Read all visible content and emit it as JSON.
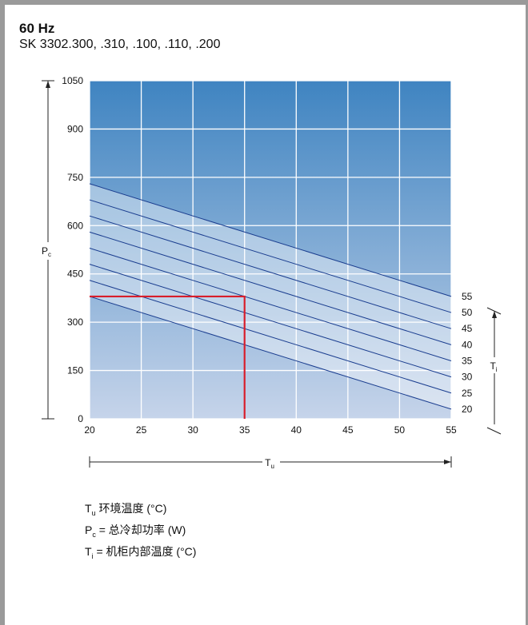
{
  "header": {
    "title": "60 Hz",
    "subtitle": "SK 3302.300, .310, .100, .110, .200"
  },
  "colors": {
    "bg_top": "#3f84c1",
    "bg_bottom": "#c6d4ea",
    "band_fill": "#ffffff",
    "line": "#1a3d8f",
    "highlight": "#d81e2b",
    "grid": "#ffffff"
  },
  "chart_data": {
    "type": "line",
    "xlabel": "T",
    "xlabel_sub": "u",
    "ylabel": "P",
    "ylabel_sub": "c",
    "right_label": "T",
    "right_label_sub": "i",
    "xlim": [
      20,
      55
    ],
    "ylim": [
      0,
      1050
    ],
    "xticks": [
      20,
      25,
      30,
      35,
      40,
      45,
      50,
      55
    ],
    "yticks": [
      0,
      150,
      300,
      450,
      600,
      750,
      900,
      1050
    ],
    "grid": true,
    "series": [
      {
        "name": "55",
        "x": [
          20,
          55
        ],
        "y": [
          730,
          380
        ]
      },
      {
        "name": "50",
        "x": [
          20,
          55
        ],
        "y": [
          680,
          330
        ]
      },
      {
        "name": "45",
        "x": [
          20,
          55
        ],
        "y": [
          630,
          280
        ]
      },
      {
        "name": "40",
        "x": [
          20,
          55
        ],
        "y": [
          580,
          230
        ]
      },
      {
        "name": "35",
        "x": [
          20,
          55
        ],
        "y": [
          530,
          180
        ]
      },
      {
        "name": "30",
        "x": [
          20,
          55
        ],
        "y": [
          480,
          130
        ]
      },
      {
        "name": "25",
        "x": [
          20,
          55
        ],
        "y": [
          430,
          80
        ]
      },
      {
        "name": "20",
        "x": [
          20,
          55
        ],
        "y": [
          380,
          30
        ]
      }
    ],
    "highlight": {
      "x": 35,
      "y": 380
    }
  },
  "legend": {
    "line1_sym": "T",
    "line1_sub": "u",
    "line1_text": " 环境温度 (°C)",
    "line2_sym": "P",
    "line2_sub": "c",
    "line2_text": " = 总冷却功率 (W)",
    "line3_sym": "T",
    "line3_sub": "i",
    "line3_text": "  = 机柜内部温度 (°C)"
  }
}
